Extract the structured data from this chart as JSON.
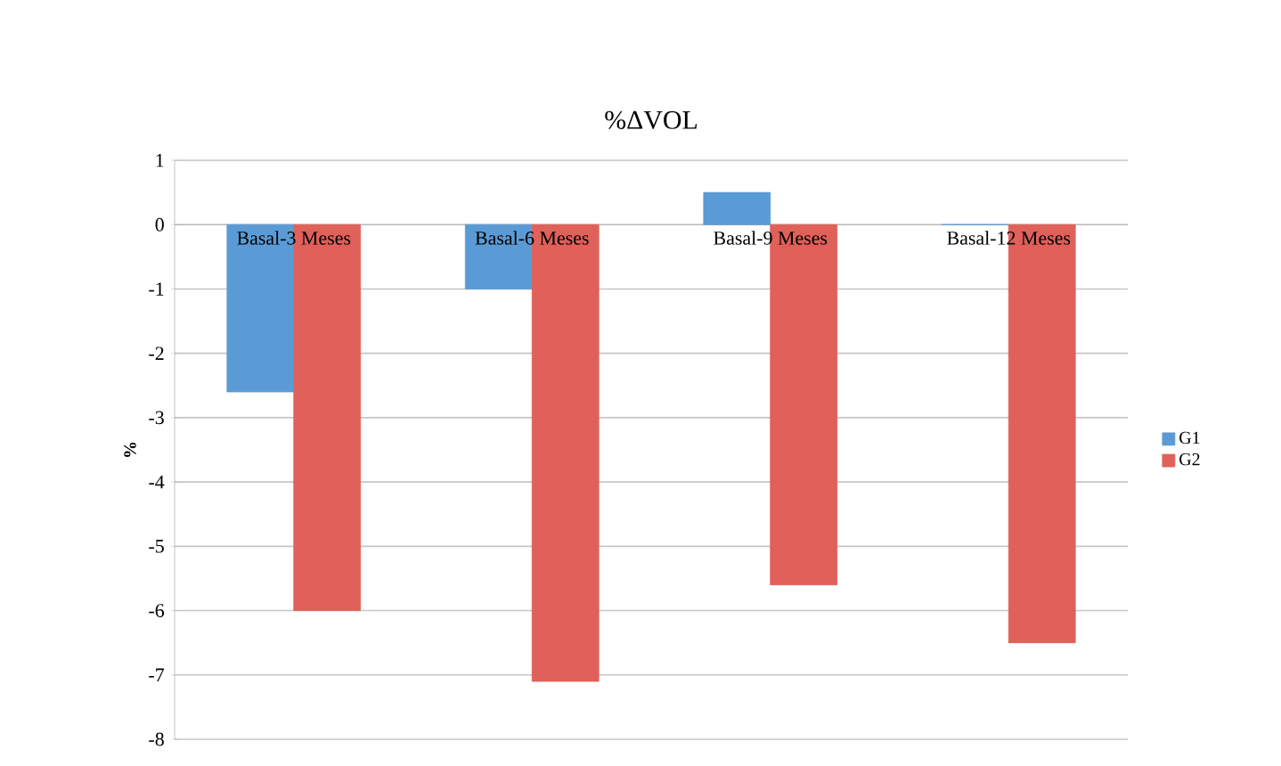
{
  "chart_data": {
    "type": "bar",
    "title": "%ΔVOL",
    "ylabel": "%",
    "categories": [
      "Basal-3 Meses",
      "Basal-6 Meses",
      "Basal-9 Meses",
      "Basal-12 Meses"
    ],
    "series": [
      {
        "name": "G1",
        "color": "#5b9bd5",
        "values": [
          -2.6,
          -1.0,
          0.5,
          0
        ]
      },
      {
        "name": "G2",
        "color": "#e0605a",
        "values": [
          -6.0,
          -7.1,
          -5.6,
          -6.5
        ]
      }
    ],
    "ylim": [
      -8,
      1
    ],
    "yticks": [
      -8,
      -7,
      -6,
      -5,
      -4,
      -3,
      -2,
      -1,
      0,
      1
    ],
    "grid": "y",
    "legend": "right"
  }
}
